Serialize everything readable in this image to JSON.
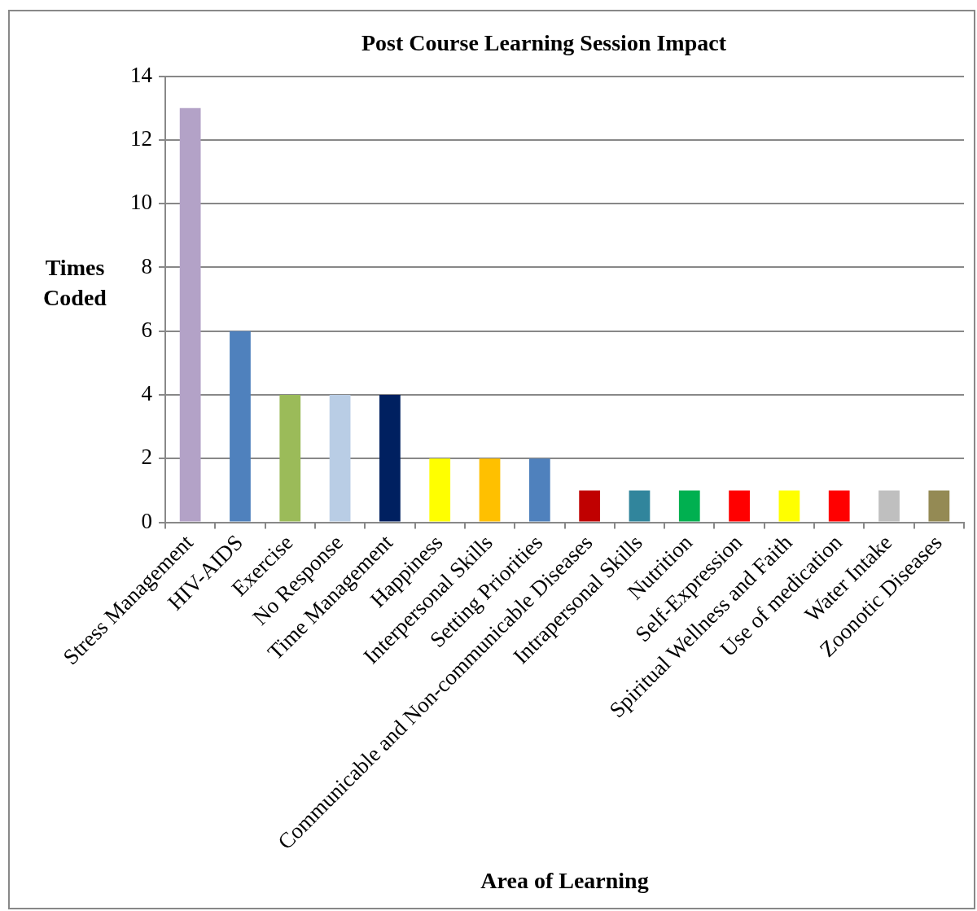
{
  "chart_data": {
    "type": "bar",
    "title": "Post Course Learning Session Impact",
    "xlabel": "Area of Learning",
    "ylabel": "Times Coded",
    "categories": [
      "Stress Management",
      "HIV-AIDS",
      "Exercise",
      "No Response",
      "Time Management",
      "Happiness",
      "Interpersonal Skills",
      "Setting Priorities",
      "Communicable and Non-communicable Diseases",
      "Intrapersonal Skills",
      "Nutrition",
      "Self-Expression",
      "Spiritual Wellness and Faith",
      "Use of medication",
      "Water Intake",
      "Zoonotic Diseases"
    ],
    "values": [
      13,
      6,
      4,
      4,
      4,
      2,
      2,
      2,
      1,
      1,
      1,
      1,
      1,
      1,
      1,
      1
    ],
    "colors": [
      "#b3a2c7",
      "#4f81bd",
      "#9bbb59",
      "#b9cde5",
      "#002060",
      "#ffff00",
      "#ffc000",
      "#4f81bd",
      "#c00000",
      "#31859c",
      "#00b050",
      "#ff0000",
      "#ffff00",
      "#ff0000",
      "#bfbfbf",
      "#948a54"
    ],
    "ylim": [
      0,
      14
    ],
    "yticks": [
      0,
      2,
      4,
      6,
      8,
      10,
      12,
      14
    ],
    "grid": "y",
    "legend": false
  }
}
